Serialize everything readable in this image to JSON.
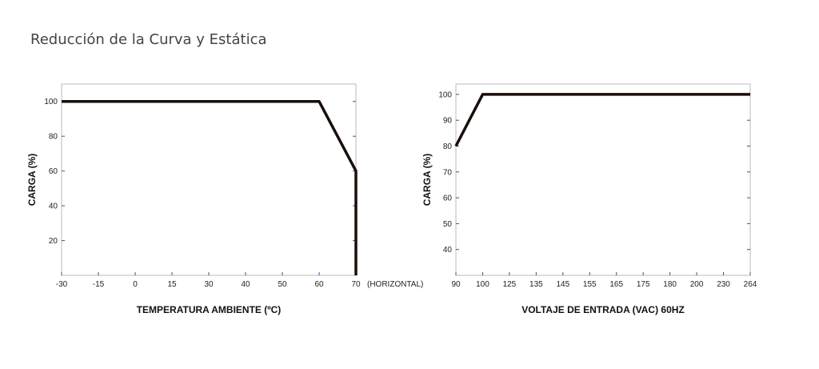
{
  "page": {
    "title": "Reducción de la Curva y Estática"
  },
  "colors": {
    "line": "#1a0e0a",
    "frame": "#bbbbbb",
    "tick_mark": "#3355aa"
  },
  "chart_data": [
    {
      "type": "line",
      "ylabel": "CARGA (%)",
      "xlabel": "TEMPERATURA AMBIENTE (ºC)",
      "x_note": "(HORIZONTAL)",
      "x_ticks": [
        "-30",
        "-15",
        "0",
        "15",
        "30",
        "40",
        "50",
        "60",
        "70"
      ],
      "y_ticks": [
        "20",
        "40",
        "60",
        "80",
        "100"
      ],
      "y_range": [
        0,
        110
      ],
      "x": [
        -30,
        60,
        70,
        70
      ],
      "series": [
        {
          "values": [
            100,
            100,
            60,
            0
          ]
        }
      ]
    },
    {
      "type": "line",
      "ylabel": "CARGA (%)",
      "xlabel": "VOLTAJE DE ENTRADA (VAC) 60HZ",
      "x_ticks": [
        "90",
        "100",
        "125",
        "135",
        "145",
        "155",
        "165",
        "175",
        "180",
        "200",
        "230",
        "264"
      ],
      "y_ticks": [
        "40",
        "50",
        "60",
        "70",
        "80",
        "90",
        "100"
      ],
      "y_range": [
        30,
        104
      ],
      "x": [
        90,
        100,
        264
      ],
      "series": [
        {
          "values": [
            80,
            100,
            100
          ]
        }
      ]
    }
  ]
}
